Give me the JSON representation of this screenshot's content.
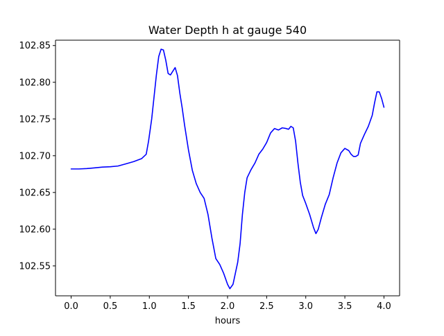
{
  "chart_data": {
    "type": "line",
    "title": "Water Depth h at gauge 540",
    "xlabel": "hours",
    "ylabel": "",
    "xlim": [
      -0.2,
      4.2
    ],
    "ylim": [
      102.5093,
      102.8573
    ],
    "xticks": [
      0.0,
      0.5,
      1.0,
      1.5,
      2.0,
      2.5,
      3.0,
      3.5,
      4.0
    ],
    "xtick_labels": [
      "0.0",
      "0.5",
      "1.0",
      "1.5",
      "2.0",
      "2.5",
      "3.0",
      "3.5",
      "4.0"
    ],
    "yticks": [
      102.55,
      102.6,
      102.65,
      102.7,
      102.75,
      102.8,
      102.85
    ],
    "ytick_labels": [
      "102.55",
      "102.60",
      "102.65",
      "102.70",
      "102.75",
      "102.80",
      "102.85"
    ],
    "grid": false,
    "series": [
      {
        "color": "#0000ff",
        "x": [
          0.0,
          0.1,
          0.2,
          0.3,
          0.4,
          0.5,
          0.6,
          0.7,
          0.8,
          0.9,
          0.96,
          0.99,
          1.03,
          1.06,
          1.09,
          1.12,
          1.15,
          1.18,
          1.21,
          1.24,
          1.27,
          1.3,
          1.33,
          1.36,
          1.39,
          1.42,
          1.45,
          1.5,
          1.55,
          1.6,
          1.65,
          1.7,
          1.75,
          1.8,
          1.85,
          1.9,
          1.95,
          2.0,
          2.03,
          2.07,
          2.1,
          2.13,
          2.16,
          2.19,
          2.22,
          2.25,
          2.3,
          2.35,
          2.4,
          2.45,
          2.5,
          2.55,
          2.6,
          2.65,
          2.7,
          2.75,
          2.78,
          2.81,
          2.84,
          2.87,
          2.9,
          2.93,
          2.96,
          3.0,
          3.05,
          3.1,
          3.13,
          3.16,
          3.2,
          3.25,
          3.3,
          3.35,
          3.4,
          3.45,
          3.5,
          3.55,
          3.58,
          3.61,
          3.64,
          3.67,
          3.7,
          3.75,
          3.8,
          3.85,
          3.88,
          3.91,
          3.94,
          3.97,
          4.0
        ],
        "y": [
          102.682,
          102.682,
          102.6825,
          102.6835,
          102.6845,
          102.685,
          102.686,
          102.689,
          102.692,
          102.696,
          102.702,
          102.72,
          102.75,
          102.78,
          102.81,
          102.835,
          102.845,
          102.844,
          102.83,
          102.812,
          102.81,
          102.815,
          102.82,
          102.809,
          102.785,
          102.765,
          102.742,
          102.708,
          102.68,
          102.662,
          102.65,
          102.642,
          102.62,
          102.588,
          102.56,
          102.552,
          102.54,
          102.525,
          102.519,
          102.525,
          102.54,
          102.555,
          102.58,
          102.62,
          102.65,
          102.67,
          102.681,
          102.69,
          102.702,
          102.709,
          102.718,
          102.731,
          102.737,
          102.735,
          102.738,
          102.737,
          102.736,
          102.74,
          102.738,
          102.72,
          102.69,
          102.664,
          102.646,
          102.635,
          102.62,
          102.602,
          102.594,
          102.6,
          102.616,
          102.634,
          102.647,
          102.67,
          102.69,
          102.704,
          102.71,
          102.707,
          102.702,
          102.699,
          102.699,
          102.701,
          102.717,
          102.729,
          102.74,
          102.755,
          102.772,
          102.787,
          102.787,
          102.778,
          102.766
        ]
      }
    ]
  }
}
